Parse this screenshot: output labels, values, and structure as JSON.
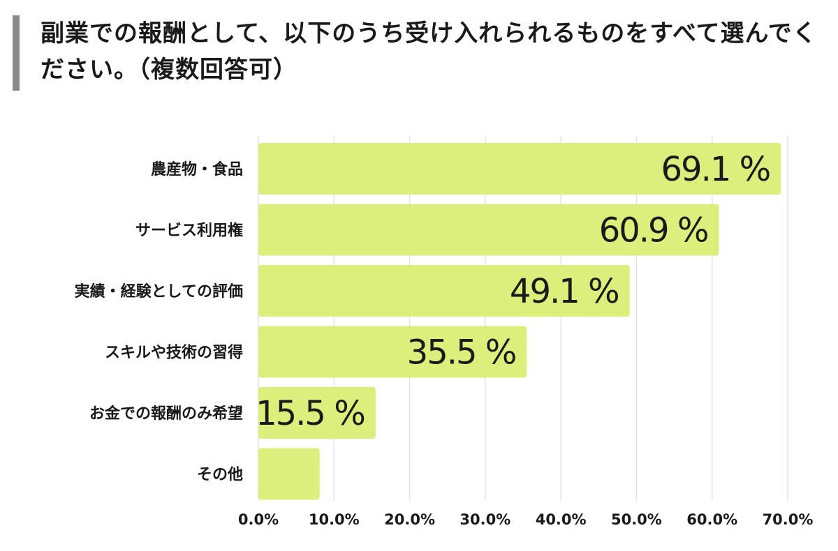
{
  "header": {
    "title": "副業での報酬として、以下のうち受け入れられるものをすべて選んでください。（複数回答可）"
  },
  "colors": {
    "bar": "#dcee7c",
    "grid": "#e2e2e2",
    "header_bar": "#8a8a8a"
  },
  "chart_data": {
    "type": "bar",
    "orientation": "horizontal",
    "categories": [
      "農産物・食品",
      "サービス利用権",
      "実績・経験としての評価",
      "スキルや技術の習得",
      "お金での報酬のみ希望",
      "その他"
    ],
    "values": [
      69.1,
      60.9,
      49.1,
      35.5,
      15.5,
      8.1
    ],
    "value_labels": [
      "69.1 %",
      "60.9 %",
      "49.1 %",
      "35.5 %",
      "15.5 %",
      ""
    ],
    "ticks": [
      "0.0%",
      "10.0%",
      "20.0%",
      "30.0%",
      "40.0%",
      "50.0%",
      "60.0%",
      "70.0%"
    ],
    "xlim": [
      0,
      70
    ],
    "grid": true,
    "legend": "none"
  }
}
